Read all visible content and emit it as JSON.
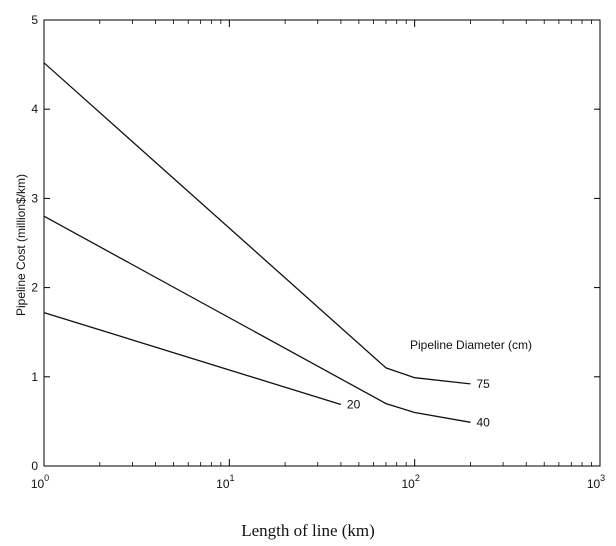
{
  "chart_data": {
    "type": "line",
    "title": "",
    "xlabel": "Length of line (km)",
    "ylabel": "Pipeline Cost (million$/km)",
    "x_scale": "log",
    "xlim": [
      1,
      1000
    ],
    "ylim": [
      0,
      5
    ],
    "grid": false,
    "x_ticks": [
      {
        "value": 1,
        "base": "10",
        "exp": "0"
      },
      {
        "value": 10,
        "base": "10",
        "exp": "1"
      },
      {
        "value": 100,
        "base": "10",
        "exp": "2"
      },
      {
        "value": 1000,
        "base": "10",
        "exp": "3"
      }
    ],
    "y_ticks": [
      {
        "value": 0,
        "label": "0"
      },
      {
        "value": 1,
        "label": "1"
      },
      {
        "value": 2,
        "label": "2"
      },
      {
        "value": 3,
        "label": "3"
      },
      {
        "value": 4,
        "label": "4"
      },
      {
        "value": 5,
        "label": "5"
      }
    ],
    "legend_title": "Pipeline Diameter (cm)",
    "series": [
      {
        "name": "75",
        "x": [
          1,
          70,
          100,
          200
        ],
        "y": [
          4.52,
          1.1,
          0.99,
          0.92
        ]
      },
      {
        "name": "40",
        "x": [
          1,
          70,
          100,
          200
        ],
        "y": [
          2.8,
          0.7,
          0.6,
          0.49
        ]
      },
      {
        "name": "20",
        "x": [
          1,
          40
        ],
        "y": [
          1.72,
          0.69
        ]
      }
    ]
  }
}
